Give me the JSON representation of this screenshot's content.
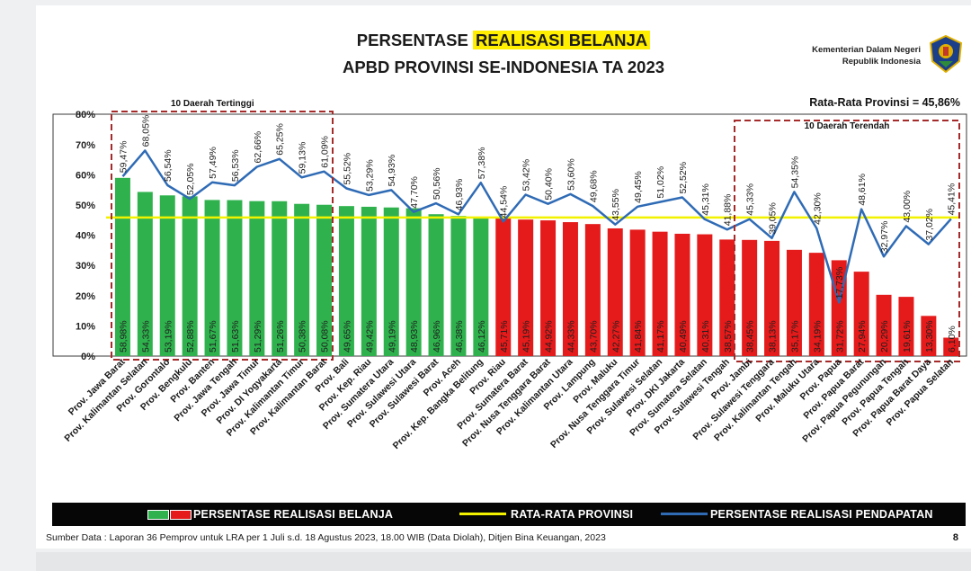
{
  "header": {
    "title_part1": "PERSENTASE",
    "title_highlight": "REALISASI BELANJA",
    "title_line2": "APBD PROVINSI SE-INDONESIA TA 2023",
    "agency_line1": "Kementerian Dalam Negeri",
    "agency_line2": "Republik Indonesia",
    "avg_label": "Rata-Rata Provinsi = 45,86%"
  },
  "legend": {
    "spending": "PERSENTASE REALISASI BELANJA",
    "average": "RATA-RATA PROVINSI",
    "revenue": "PERSENTASE REALISASI PENDAPATAN"
  },
  "footer": {
    "source": "Sumber Data : Laporan 36 Pemprov untuk LRA per 1 Juli s.d. 18 Agustus 2023, 18.00 WIB (Data Diolah), Ditjen Bina Keuangan, 2023",
    "page": "8"
  },
  "chart_data": {
    "type": "bar",
    "ylim": [
      0,
      85
    ],
    "yticks": [
      0,
      10,
      20,
      30,
      40,
      50,
      60,
      70,
      80
    ],
    "ytick_labels": [
      "0%",
      "10%",
      "20%",
      "30%",
      "40%",
      "50%",
      "60%",
      "70%",
      "80%"
    ],
    "average": 45.86,
    "top_group_label": "10 Daerah Tertinggi",
    "bottom_group_label": "10 Daerah Terendah",
    "colors": {
      "above_avg": "#2fb24d",
      "below_avg": "#e51b1b",
      "average_line": "#f2f200",
      "revenue_line": "#2f6bb5"
    },
    "categories": [
      "Prov. Jawa Barat",
      "Prov. Kalimantan Selatan",
      "Prov. Gorontalo",
      "Prov. Bengkulu",
      "Prov. Banten",
      "Prov. Jawa Tengah",
      "Prov. Jawa Timur",
      "Prov. DI Yogyakarta",
      "Prov. Kalimantan Timur",
      "Prov. Kalimantan Barat",
      "Prov. Bali",
      "Prov. Kep. Riau",
      "Prov. Sumatera Utara",
      "Prov. Sulawesi Utara",
      "Prov. Sulawesi Barat",
      "Prov. Aceh",
      "Prov. Kep. Bangka Belitung",
      "Prov. Riau",
      "Prov. Sumatera Barat",
      "Prov. Nusa Tenggara Barat",
      "Prov. Kalimantan Utara",
      "Prov. Lampung",
      "Prov. Maluku",
      "Prov. Nusa Tenggara Timur",
      "Prov. Sulawesi Selatan",
      "Prov. DKI Jakarta",
      "Prov. Sumatera Selatan",
      "Prov. Sulawesi Tengah",
      "Prov. Jambi",
      "Prov. Sulawesi Tenggara",
      "Prov. Kalimantan Tengah",
      "Prov. Maluku Utara",
      "Prov. Papua",
      "Prov. Papua Barat",
      "Prov. Papua Pegunungan",
      "Prov. Papua Tengah",
      "Prov. Papua Barat Daya",
      "Prov. Papua Selatan"
    ],
    "series": [
      {
        "name": "PERSENTASE REALISASI BELANJA",
        "type": "bar",
        "values": [
          58.98,
          54.33,
          53.19,
          52.88,
          51.67,
          51.63,
          51.29,
          51.26,
          50.38,
          50.08,
          49.65,
          49.42,
          49.19,
          48.93,
          46.96,
          46.38,
          46.12,
          45.71,
          45.19,
          44.92,
          44.33,
          43.7,
          42.27,
          41.84,
          41.17,
          40.49,
          40.31,
          38.57,
          38.45,
          38.13,
          35.17,
          34.19,
          31.72,
          27.94,
          20.29,
          19.61,
          13.3,
          6.1
        ],
        "labels": [
          "58,98%",
          "54,33%",
          "53,19%",
          "52,88%",
          "51,67%",
          "51,63%",
          "51,29%",
          "51,26%",
          "50,38%",
          "50,08%",
          "49,65%",
          "49,42%",
          "49,19%",
          "48,93%",
          "46,96%",
          "46,38%",
          "46,12%",
          "45,71%",
          "45,19%",
          "44,92%",
          "44,33%",
          "43,70%",
          "42,27%",
          "41,84%",
          "41,17%",
          "40,49%",
          "40,31%",
          "38,57%",
          "38,45%",
          "38,13%",
          "35,17%",
          "34,19%",
          "31,72%",
          "27,94%",
          "20,29%",
          "19,61%",
          "13,30%",
          "6,10%"
        ]
      },
      {
        "name": "PERSENTASE REALISASI PENDAPATAN",
        "type": "line",
        "values": [
          59.47,
          68.05,
          56.54,
          52.05,
          57.49,
          56.53,
          62.66,
          65.25,
          59.13,
          61.09,
          55.52,
          53.29,
          54.93,
          47.7,
          50.56,
          46.93,
          57.38,
          44.54,
          53.42,
          50.4,
          53.6,
          49.68,
          43.55,
          49.45,
          51.02,
          52.52,
          45.31,
          41.88,
          45.33,
          39.05,
          54.35,
          42.3,
          17.73,
          48.61,
          32.97,
          43.0,
          37.02,
          45.41
        ],
        "labels": [
          "59,47%",
          "68,05%",
          "56,54%",
          "52,05%",
          "57,49%",
          "56,53%",
          "62,66%",
          "65,25%",
          "59,13%",
          "61,09%",
          "55,52%",
          "53,29%",
          "54,93%",
          "47,70%",
          "50,56%",
          "46,93%",
          "57,38%",
          "44,54%",
          "53,42%",
          "50,40%",
          "53,60%",
          "49,68%",
          "43,55%",
          "49,45%",
          "51,02%",
          "52,52%",
          "45,31%",
          "41,88%",
          "45,33%",
          "39,05%",
          "54,35%",
          "42,30%",
          "17,73%",
          "48,61%",
          "32,97%",
          "43,00%",
          "37,02%",
          "45,41%"
        ]
      }
    ]
  }
}
